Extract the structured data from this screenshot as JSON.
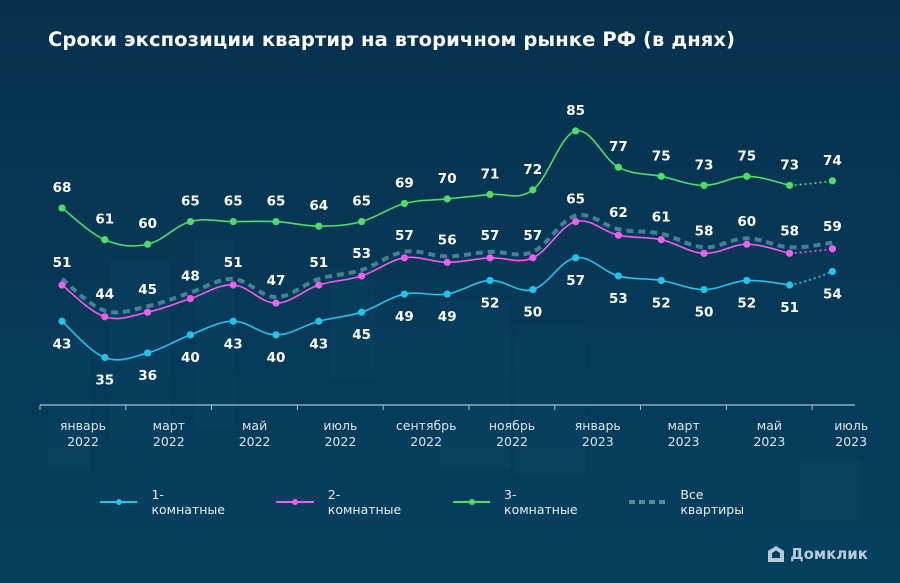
{
  "title": "Сроки экспозиции квартир на вторичном рынке РФ (в днях)",
  "brand": {
    "name": "Домклик",
    "icon": "house-logo-icon"
  },
  "chart_data": {
    "type": "line",
    "title": "Сроки экспозиции квартир на вторичном рынке РФ (в днях)",
    "xlabel": "",
    "ylabel": "",
    "grid": false,
    "legend_position": "bottom",
    "x": [
      "янв 2022",
      "фев 2022",
      "мар 2022",
      "апр 2022",
      "май 2022",
      "июн 2022",
      "июл 2022",
      "авг 2022",
      "сен 2022",
      "окт 2022",
      "ноя 2022",
      "дек 2022",
      "янв 2023",
      "фев 2023",
      "мар 2023",
      "апр 2023",
      "май 2023",
      "июн 2023",
      "июл 2023"
    ],
    "x_ticks": [
      {
        "index": 0,
        "line1": "январь",
        "line2": "2022"
      },
      {
        "index": 2,
        "line1": "март",
        "line2": "2022"
      },
      {
        "index": 4,
        "line1": "май",
        "line2": "2022"
      },
      {
        "index": 6,
        "line1": "июль",
        "line2": "2022"
      },
      {
        "index": 8,
        "line1": "сентябрь",
        "line2": "2022"
      },
      {
        "index": 10,
        "line1": "ноябрь",
        "line2": "2022"
      },
      {
        "index": 12,
        "line1": "январь",
        "line2": "2023"
      },
      {
        "index": 14,
        "line1": "март",
        "line2": "2023"
      },
      {
        "index": 16,
        "line1": "май",
        "line2": "2023"
      },
      {
        "index": 18,
        "line1": "июль",
        "line2": "2023"
      }
    ],
    "ylim": [
      30,
      90
    ],
    "last_segment_dotted": true,
    "series": [
      {
        "name": "1-комнатные",
        "color": "#21c4ea",
        "style": "solid",
        "label_pos": "below",
        "values": [
          43,
          35,
          36,
          40,
          43,
          40,
          43,
          45,
          49,
          49,
          52,
          50,
          57,
          53,
          52,
          50,
          52,
          51,
          54
        ]
      },
      {
        "name": "2-комнатные",
        "color": "#ee5ff0",
        "style": "solid",
        "label_pos": "none",
        "values": [
          51,
          44,
          45,
          48,
          51,
          47,
          51,
          53,
          57,
          56,
          57,
          57,
          65,
          62,
          61,
          58,
          60,
          58,
          59
        ]
      },
      {
        "name": "3-комнатные",
        "color": "#4fdc68",
        "style": "solid",
        "label_pos": "above",
        "values": [
          68,
          61,
          60,
          65,
          65,
          65,
          64,
          65,
          69,
          70,
          71,
          72,
          85,
          77,
          75,
          73,
          75,
          73,
          74
        ]
      },
      {
        "name": "Все квартиры",
        "color": "#4f8fa0",
        "style": "dashed",
        "label_pos": "above",
        "values": [
          51,
          44,
          45,
          48,
          51,
          47,
          51,
          53,
          57,
          56,
          57,
          57,
          65,
          62,
          61,
          58,
          60,
          58,
          59
        ]
      }
    ]
  }
}
